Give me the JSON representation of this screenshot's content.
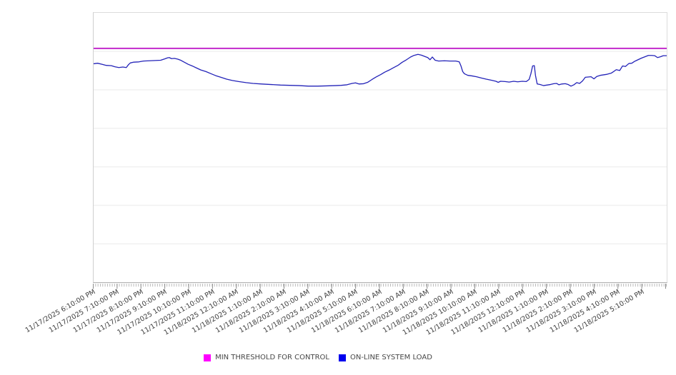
{
  "chart_data": {
    "type": "line",
    "title": "",
    "xlabel": "",
    "ylabel": "",
    "grid": "horizontal",
    "y_axis": {
      "unlabeled": true,
      "scale_note": "no y tick labels visible; values expressed as percent of plot height (0 = bottom axis, 100 = top frame)",
      "gridline_divisions": 7
    },
    "x_axis": {
      "tick_interval": "1 hour",
      "minor_ticks_per_interval": 10,
      "labels": [
        "11/17/2025 6:10:00 PM",
        "11/17/2025 7:10:00 PM",
        "11/17/2025 8:10:00 PM",
        "11/17/2025 9:10:00 PM",
        "11/17/2025 10:10:00 PM",
        "11/17/2025 11:10:00 PM",
        "11/18/2025 12:10:00 AM",
        "11/18/2025 1:10:00 AM",
        "11/18/2025 2:10:00 AM",
        "11/18/2025 3:10:00 AM",
        "11/18/2025 4:10:00 AM",
        "11/18/2025 5:10:00 AM",
        "11/18/2025 6:10:00 AM",
        "11/18/2025 7:10:00 AM",
        "11/18/2025 8:10:00 AM",
        "11/18/2025 9:10:00 AM",
        "11/18/2025 10:10:00 AM",
        "11/18/2025 11:10:00 AM",
        "11/18/2025 12:10:00 PM",
        "11/18/2025 1:10:00 PM",
        "11/18/2025 2:10:00 PM",
        "11/18/2025 3:10:00 PM",
        "11/18/2025 4:10:00 PM",
        "11/18/2025 5:10:00 PM"
      ]
    },
    "series": [
      {
        "name": "MIN THRESHOLD FOR CONTROL",
        "type": "constant-threshold",
        "color": "#c228cc",
        "value": 86.8
      },
      {
        "name": "ON-LINE SYSTEM LOAD",
        "type": "line",
        "color": "#2323b8",
        "x_unit": "percent of x-axis span (0 = 11/17 6:10 PM, 100 = 11/18 6:10 PM)",
        "points": [
          [
            0,
            81.1
          ],
          [
            0.7,
            81.3
          ],
          [
            1.5,
            80.9
          ],
          [
            2.2,
            80.5
          ],
          [
            3.1,
            80.4
          ],
          [
            3.7,
            80.0
          ],
          [
            4.4,
            79.7
          ],
          [
            5.1,
            79.9
          ],
          [
            5.7,
            79.7
          ],
          [
            6.1,
            80.8
          ],
          [
            6.4,
            81.4
          ],
          [
            7.0,
            81.7
          ],
          [
            7.9,
            81.8
          ],
          [
            8.7,
            82.1
          ],
          [
            9.7,
            82.2
          ],
          [
            10.7,
            82.3
          ],
          [
            11.7,
            82.4
          ],
          [
            12.4,
            82.9
          ],
          [
            12.9,
            83.3
          ],
          [
            13.2,
            83.4
          ],
          [
            13.6,
            83.0
          ],
          [
            14.1,
            83.1
          ],
          [
            14.7,
            82.8
          ],
          [
            15.2,
            82.4
          ],
          [
            15.9,
            81.6
          ],
          [
            16.5,
            80.9
          ],
          [
            17.2,
            80.3
          ],
          [
            18.0,
            79.5
          ],
          [
            18.7,
            78.8
          ],
          [
            19.6,
            78.2
          ],
          [
            20.5,
            77.4
          ],
          [
            21.3,
            76.7
          ],
          [
            22.2,
            76.1
          ],
          [
            23.2,
            75.4
          ],
          [
            24.2,
            74.9
          ],
          [
            25.3,
            74.5
          ],
          [
            26.6,
            74.1
          ],
          [
            27.8,
            73.8
          ],
          [
            29.3,
            73.6
          ],
          [
            31.0,
            73.4
          ],
          [
            32.6,
            73.2
          ],
          [
            34.2,
            73.1
          ],
          [
            35.8,
            73.0
          ],
          [
            37.5,
            72.8
          ],
          [
            39.1,
            72.8
          ],
          [
            40.7,
            72.9
          ],
          [
            42.2,
            73.0
          ],
          [
            43.2,
            73.1
          ],
          [
            44.2,
            73.3
          ],
          [
            45.1,
            73.8
          ],
          [
            45.7,
            74.0
          ],
          [
            46.3,
            73.6
          ],
          [
            47.1,
            73.7
          ],
          [
            47.8,
            74.2
          ],
          [
            48.6,
            75.3
          ],
          [
            49.3,
            76.2
          ],
          [
            50.1,
            77.1
          ],
          [
            50.8,
            78.0
          ],
          [
            51.6,
            78.8
          ],
          [
            52.3,
            79.6
          ],
          [
            53.1,
            80.5
          ],
          [
            53.8,
            81.6
          ],
          [
            54.6,
            82.6
          ],
          [
            55.3,
            83.6
          ],
          [
            55.9,
            84.2
          ],
          [
            56.6,
            84.6
          ],
          [
            57.2,
            84.3
          ],
          [
            57.8,
            83.8
          ],
          [
            58.3,
            83.4
          ],
          [
            58.7,
            82.6
          ],
          [
            59.1,
            83.6
          ],
          [
            59.6,
            82.4
          ],
          [
            60.2,
            82.1
          ],
          [
            61.2,
            82.2
          ],
          [
            62.2,
            82.1
          ],
          [
            63.2,
            82.1
          ],
          [
            63.8,
            81.8
          ],
          [
            64.1,
            80.3
          ],
          [
            64.4,
            78.2
          ],
          [
            64.7,
            77.4
          ],
          [
            65.3,
            76.8
          ],
          [
            66.0,
            76.6
          ],
          [
            66.8,
            76.3
          ],
          [
            67.7,
            75.8
          ],
          [
            68.5,
            75.4
          ],
          [
            69.4,
            75.0
          ],
          [
            70.2,
            74.6
          ],
          [
            70.6,
            74.2
          ],
          [
            71.0,
            74.6
          ],
          [
            71.8,
            74.5
          ],
          [
            72.5,
            74.3
          ],
          [
            73.3,
            74.6
          ],
          [
            74.0,
            74.4
          ],
          [
            74.8,
            74.6
          ],
          [
            75.5,
            74.5
          ],
          [
            76.0,
            75.3
          ],
          [
            76.3,
            77.4
          ],
          [
            76.6,
            80.3
          ],
          [
            76.9,
            80.4
          ],
          [
            77.1,
            76.8
          ],
          [
            77.4,
            73.6
          ],
          [
            77.9,
            73.4
          ],
          [
            78.5,
            73.0
          ],
          [
            79.1,
            73.2
          ],
          [
            79.7,
            73.4
          ],
          [
            80.3,
            73.7
          ],
          [
            80.8,
            73.8
          ],
          [
            81.2,
            73.3
          ],
          [
            81.7,
            73.6
          ],
          [
            82.3,
            73.7
          ],
          [
            82.8,
            73.4
          ],
          [
            83.3,
            72.8
          ],
          [
            83.8,
            73.3
          ],
          [
            84.3,
            74.1
          ],
          [
            84.8,
            73.8
          ],
          [
            85.3,
            74.7
          ],
          [
            85.8,
            76.1
          ],
          [
            86.3,
            76.2
          ],
          [
            86.8,
            76.3
          ],
          [
            87.3,
            75.5
          ],
          [
            87.8,
            76.4
          ],
          [
            88.4,
            76.8
          ],
          [
            89.0,
            77.0
          ],
          [
            89.6,
            77.2
          ],
          [
            90.3,
            77.6
          ],
          [
            90.8,
            78.3
          ],
          [
            91.2,
            78.9
          ],
          [
            91.8,
            78.6
          ],
          [
            92.3,
            80.3
          ],
          [
            92.8,
            80.1
          ],
          [
            93.4,
            81.2
          ],
          [
            93.9,
            81.3
          ],
          [
            94.4,
            82.0
          ],
          [
            95.0,
            82.6
          ],
          [
            95.6,
            83.2
          ],
          [
            96.2,
            83.7
          ],
          [
            96.8,
            84.2
          ],
          [
            97.4,
            84.2
          ],
          [
            97.9,
            84.1
          ],
          [
            98.4,
            83.4
          ],
          [
            98.9,
            83.7
          ],
          [
            99.4,
            84.1
          ],
          [
            100.0,
            84.1
          ]
        ]
      }
    ],
    "legend_position": "bottom-center",
    "legend": [
      {
        "label": "MIN THRESHOLD FOR CONTROL",
        "color": "#ff00ff"
      },
      {
        "label": "ON-LINE SYSTEM LOAD",
        "color": "#0000ee"
      }
    ]
  }
}
